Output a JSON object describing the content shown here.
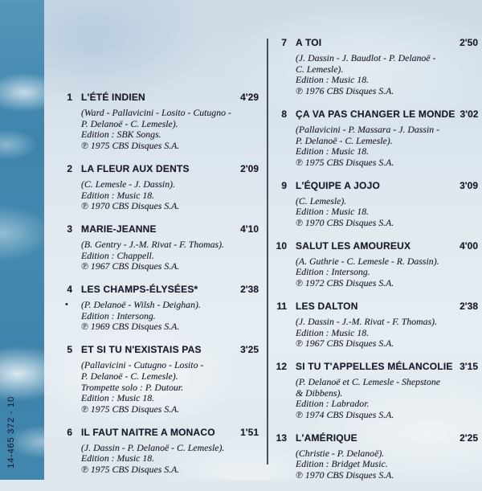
{
  "page": {
    "catalog_number": "14-465 372 - 10"
  },
  "colors": {
    "spine_blue": "#4187ae",
    "sky_light": "#e1e9f0",
    "text_dark": "#1b1b2b",
    "divider": "#2c2c3a"
  },
  "tracks_left": [
    {
      "number": "1",
      "title": "L'ÉTÉ INDIEN",
      "time": "4'29",
      "credits": [
        "(Ward - Pallavicini - Losito - Cutugno -",
        "P. Delanoë - C. Lemesle).",
        "Edition : SBK Songs.",
        "℗ 1975 CBS Disques S.A."
      ]
    },
    {
      "number": "2",
      "title": "LA FLEUR AUX DENTS",
      "time": "2'09",
      "credits": [
        "(C. Lemesle - J. Dassin).",
        "Edition : Music 18.",
        "℗ 1970 CBS Disques S.A."
      ]
    },
    {
      "number": "3",
      "title": "MARIE-JEANNE",
      "time": "4'10",
      "credits": [
        "(B. Gentry - J.-M. Rivat - F. Thomas).",
        "Edition : Chappell.",
        "℗ 1967 CBS Disques S.A."
      ]
    },
    {
      "number": "4",
      "title": "LES CHAMPS-ÉLYSÉES*",
      "time": "2'38",
      "footnote_marker": "•",
      "credits": [
        "(P. Delanoë - Wilsh - Deighan).",
        "Edition : Intersong.",
        "℗ 1969 CBS Disques S.A."
      ]
    },
    {
      "number": "5",
      "title": "ET SI TU N'EXISTAIS PAS",
      "time": "3'25",
      "credits": [
        "(Pallavicini - Cutugno - Losito -",
        "P. Delanoë - C. Lemesle).",
        "Trompette solo : P. Dutour.",
        "Edition : Music 18.",
        "℗ 1975 CBS Disques S.A."
      ]
    },
    {
      "number": "6",
      "title": "IL FAUT NAITRE A MONACO",
      "time": "1'51",
      "credits": [
        "(J. Dassin - P. Delanoë - C. Lemesle).",
        "Edition : Music 18.",
        "℗ 1975 CBS Disques S.A."
      ]
    }
  ],
  "tracks_right": [
    {
      "number": "7",
      "title": "A TOI",
      "time": "2'50",
      "credits": [
        "(J. Dassin - J. Baudlot - P. Delanoë -",
        "C. Lemesle).",
        "Edition : Music 18.",
        "℗ 1976 CBS Disques S.A."
      ]
    },
    {
      "number": "8",
      "title": "ÇA VA PAS CHANGER LE MONDE",
      "time": "3'02",
      "credits": [
        "(Pallavicini - P. Massara - J. Dassin -",
        "P. Delanoë - C. Lemesle).",
        "Edition : Music 18.",
        "℗ 1975 CBS Disques S.A."
      ]
    },
    {
      "number": "9",
      "title": "L'ÉQUIPE A JOJO",
      "time": "3'09",
      "credits": [
        "(C. Lemesle).",
        "Edition : Music 18.",
        "℗ 1970 CBS Disques S.A."
      ]
    },
    {
      "number": "10",
      "title": "SALUT LES AMOUREUX",
      "time": "4'00",
      "credits": [
        "(A. Guthrie - C. Lemesle - R. Dassin).",
        "Edition : Intersong.",
        "℗ 1972 CBS Disques S.A."
      ]
    },
    {
      "number": "11",
      "title": "LES DALTON",
      "time": "2'38",
      "credits": [
        "(J. Dassin - J.-M. Rivat - F. Thomas).",
        "Edition : Music 18.",
        "℗ 1967 CBS Disques S.A."
      ]
    },
    {
      "number": "12",
      "title": "SI TU T'APPELLES MÉLANCOLIE",
      "time": "3'15",
      "credits": [
        "(P. Delanoë et C. Lemesle - Shepstone",
        "& Dibbens).",
        "Edition : Labrador.",
        "℗ 1974 CBS Disques S.A."
      ]
    },
    {
      "number": "13",
      "title": "L'AMÉRIQUE",
      "time": "2'25",
      "credits": [
        "(Christie - P. Delanoë).",
        "Edition : Bridget Music.",
        "℗ 1970 CBS Disques S.A."
      ]
    }
  ]
}
